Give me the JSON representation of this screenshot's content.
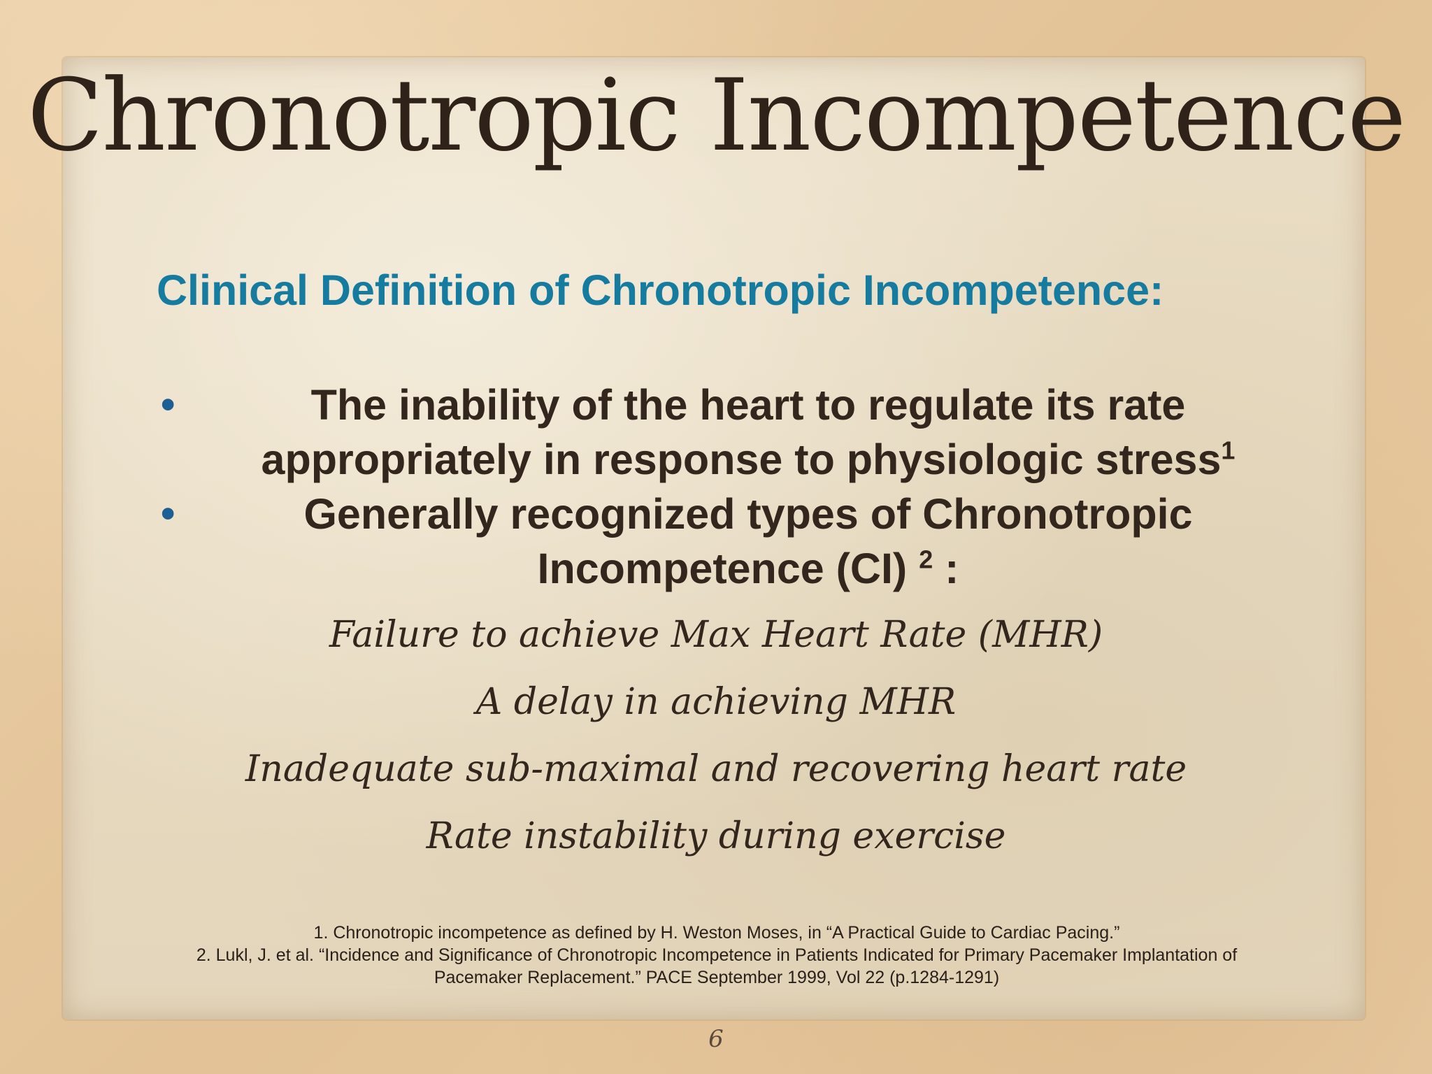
{
  "slide": {
    "title": "Chronotropic Incompetence",
    "subtitle": "Clinical Definition of Chronotropic Incompetence:",
    "bullets": [
      {
        "line1": "The inability of the heart to regulate its rate",
        "line2": "appropriately in response to physiologic stress",
        "superscript": "1"
      },
      {
        "line1": "Generally recognized types of Chronotropic",
        "line2": "Incompetence (CI) ",
        "superscript": "2",
        "suffix": " :"
      }
    ],
    "types": [
      "Failure to achieve Max Heart Rate (MHR)",
      "A delay in achieving MHR",
      "Inadequate sub-maximal and recovering heart rate",
      "Rate instability during exercise"
    ],
    "footnotes": [
      "1. Chronotropic incompetence as defined by H. Weston Moses, in “A Practical Guide to Cardiac Pacing.”",
      "2. Lukl, J. et al. “Incidence and Significance of Chronotropic Incompetence in Patients Indicated for Primary Pacemaker Implantation of",
      "Pacemaker Replacement.” PACE September 1999, Vol 22 (p.1284-1291)"
    ],
    "page_number": "6",
    "bullet_symbol": "•",
    "colors": {
      "subtitle": "#157ca0",
      "bullet_dot": "#1e5f93",
      "text": "#33261c"
    }
  }
}
